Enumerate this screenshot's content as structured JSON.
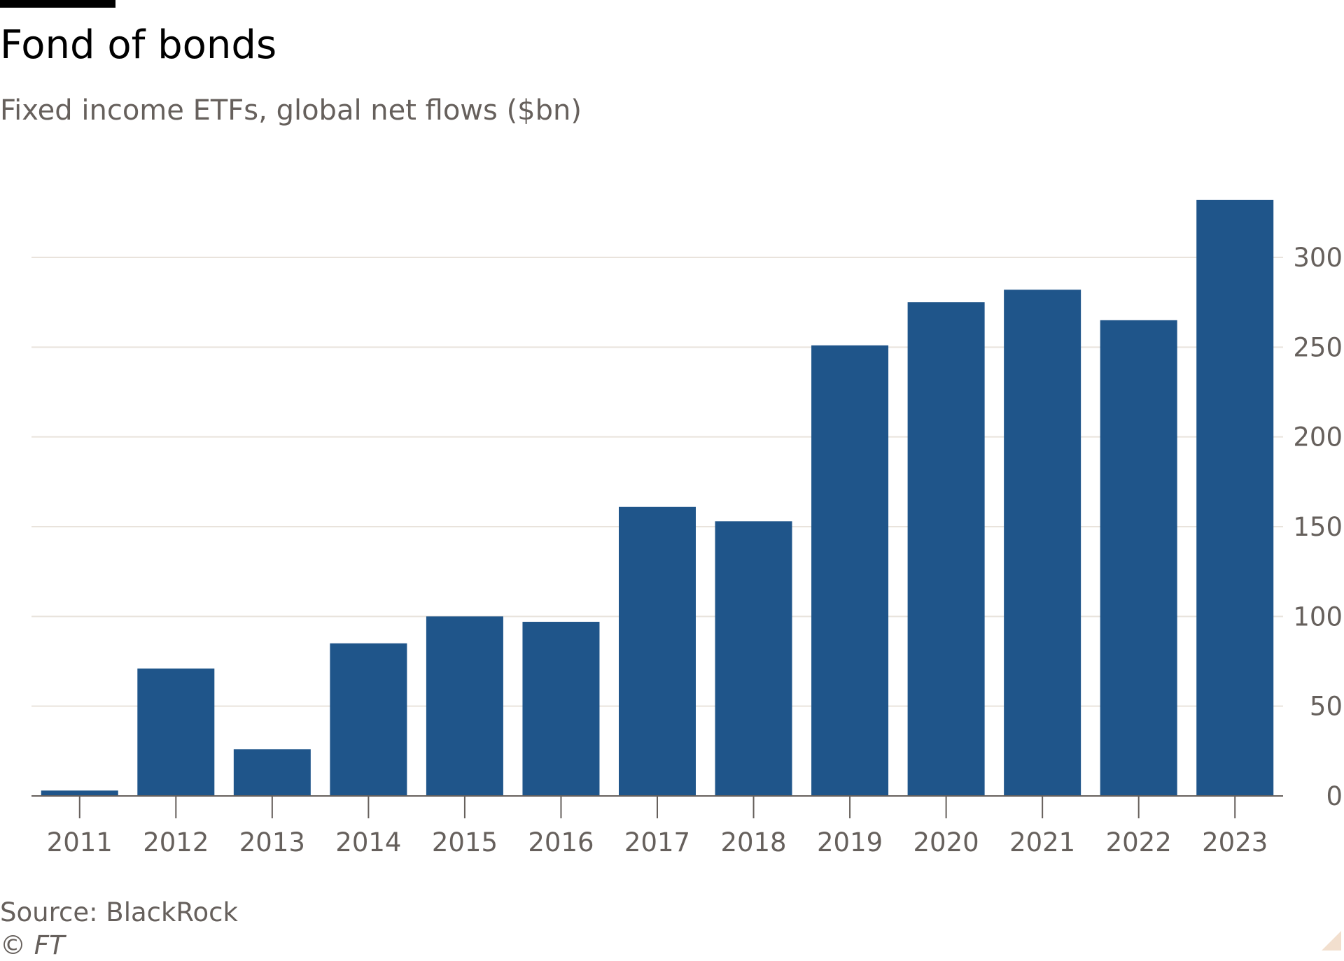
{
  "header": {
    "title": "Fond of bonds",
    "subtitle": "Fixed income ETFs, global net flows ($bn)"
  },
  "footer": {
    "source": "Source: BlackRock",
    "copyright": "© FT"
  },
  "colors": {
    "bar": "#1f558a",
    "grid": "#e9e3dc",
    "axis_text": "#66605c",
    "title": "#000000"
  },
  "chart_data": {
    "type": "bar",
    "title": "Fond of bonds",
    "subtitle": "Fixed income ETFs, global net flows ($bn)",
    "xlabel": "",
    "ylabel": "",
    "categories": [
      "2011",
      "2012",
      "2013",
      "2014",
      "2015",
      "2016",
      "2017",
      "2018",
      "2019",
      "2020",
      "2021",
      "2022",
      "2023"
    ],
    "values": [
      3,
      71,
      26,
      85,
      100,
      97,
      161,
      153,
      251,
      275,
      282,
      265,
      332
    ],
    "ylim": [
      0,
      340
    ],
    "yticks": [
      0,
      50,
      100,
      150,
      200,
      250,
      300
    ],
    "y_axis_position": "right",
    "grid": true
  }
}
